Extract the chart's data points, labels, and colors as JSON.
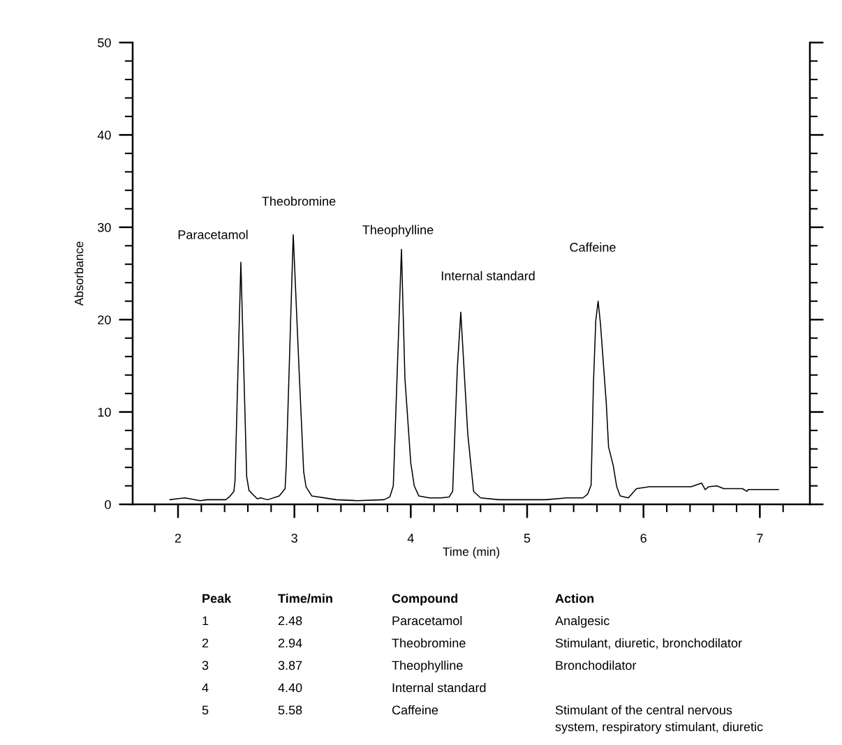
{
  "chart_data": {
    "type": "line",
    "xlabel": "Time (min)",
    "ylabel": "Absorbance",
    "marker": "none",
    "line_style": "solid",
    "grid": false,
    "legend": false,
    "xlim": [
      1.61,
      7.43
    ],
    "ylim": [
      0,
      50
    ],
    "xticks": [
      {
        "value": 1.8,
        "label": null
      },
      2,
      {
        "value": 2.2,
        "label": null
      },
      {
        "value": 2.4,
        "label": null
      },
      {
        "value": 2.6,
        "label": null
      },
      {
        "value": 2.8,
        "label": null
      },
      3,
      {
        "value": 3.2,
        "label": null
      },
      {
        "value": 3.4,
        "label": null
      },
      {
        "value": 3.6,
        "label": null
      },
      {
        "value": 3.8,
        "label": null
      },
      4,
      {
        "value": 4.2,
        "label": null
      },
      {
        "value": 4.4,
        "label": null
      },
      {
        "value": 4.6,
        "label": null
      },
      {
        "value": 4.8,
        "label": null
      },
      5,
      {
        "value": 5.2,
        "label": null
      },
      {
        "value": 5.4,
        "label": null
      },
      {
        "value": 5.6,
        "label": null
      },
      {
        "value": 5.8,
        "label": null
      },
      6,
      {
        "value": 6.2,
        "label": null
      },
      {
        "value": 6.4,
        "label": null
      },
      {
        "value": 6.6,
        "label": null
      },
      {
        "value": 6.8,
        "label": null
      },
      7,
      {
        "value": 7.2,
        "label": null
      }
    ],
    "yticks": [
      0,
      {
        "value": 2,
        "label": null
      },
      {
        "value": 4,
        "label": null
      },
      {
        "value": 6,
        "label": null
      },
      {
        "value": 8,
        "label": null
      },
      10,
      {
        "value": 12,
        "label": null
      },
      {
        "value": 14,
        "label": null
      },
      {
        "value": 16,
        "label": null
      },
      {
        "value": 18,
        "label": null
      },
      20,
      {
        "value": 22,
        "label": null
      },
      {
        "value": 24,
        "label": null
      },
      {
        "value": 26,
        "label": null
      },
      {
        "value": 28,
        "label": null
      },
      30,
      {
        "value": 32,
        "label": null
      },
      {
        "value": 34,
        "label": null
      },
      {
        "value": 36,
        "label": null
      },
      {
        "value": 38,
        "label": null
      },
      40,
      {
        "value": 42,
        "label": null
      },
      {
        "value": 44,
        "label": null
      },
      {
        "value": 46,
        "label": null
      },
      {
        "value": 48,
        "label": null
      },
      50
    ],
    "series": [
      {
        "color": "#000000",
        "x": [
          1.93,
          2.06,
          2.19,
          2.25,
          2.41,
          2.44,
          2.48,
          2.49,
          2.54,
          2.59,
          2.61,
          2.68,
          2.71,
          2.77,
          2.87,
          2.92,
          2.93,
          2.99,
          3.04,
          3.08,
          3.1,
          3.15,
          3.36,
          3.54,
          3.77,
          3.82,
          3.85,
          3.87,
          3.92,
          3.95,
          4.0,
          4.03,
          4.07,
          4.16,
          4.26,
          4.33,
          4.36,
          4.4,
          4.43,
          4.49,
          4.54,
          4.6,
          4.76,
          5.06,
          5.16,
          5.34,
          5.48,
          5.52,
          5.55,
          5.57,
          5.59,
          5.61,
          5.63,
          5.68,
          5.7,
          5.74,
          5.77,
          5.8,
          5.87,
          5.94,
          5.99,
          6.05,
          6.41,
          6.5,
          6.53,
          6.56,
          6.63,
          6.69,
          6.85,
          6.89,
          6.9,
          7.16
        ],
        "values": [
          0.5,
          0.7,
          0.4,
          0.5,
          0.5,
          0.8,
          1.4,
          2.6,
          26.2,
          3.0,
          1.5,
          0.6,
          0.7,
          0.5,
          0.9,
          1.7,
          4.2,
          29.2,
          14.6,
          3.5,
          1.9,
          0.9,
          0.5,
          0.4,
          0.5,
          0.8,
          2.0,
          9.3,
          27.6,
          13.6,
          4.5,
          2.0,
          0.9,
          0.7,
          0.7,
          0.8,
          1.4,
          14.7,
          20.8,
          7.6,
          1.4,
          0.7,
          0.5,
          0.5,
          0.5,
          0.7,
          0.7,
          1.1,
          2.1,
          13.1,
          19.9,
          22.0,
          19.6,
          11.0,
          6.2,
          4.2,
          1.9,
          0.9,
          0.7,
          1.7,
          1.8,
          1.9,
          1.9,
          2.3,
          1.6,
          1.9,
          2.0,
          1.7,
          1.7,
          1.4,
          1.6,
          1.6
        ]
      }
    ],
    "annotations": [
      "Paracetamol",
      "Theobromine",
      "Theophylline",
      "Internal standard",
      "Caffeine",
      "Peak\tTime/min\tCompound\tAction",
      "1\t2.48\tParacetamol\tAnalgesic",
      "2\t2.94\tTheobromine\tStimulant, diuretic, bronchodilator",
      "3\t3.87\tTheophylline\tBronchodilator",
      "4\t4.40\tInternal standard\t",
      "5\t5.58\tCaffeine\tStimulant of the central nervous\nsystem, respiratory stimulant, diuretic"
    ]
  }
}
